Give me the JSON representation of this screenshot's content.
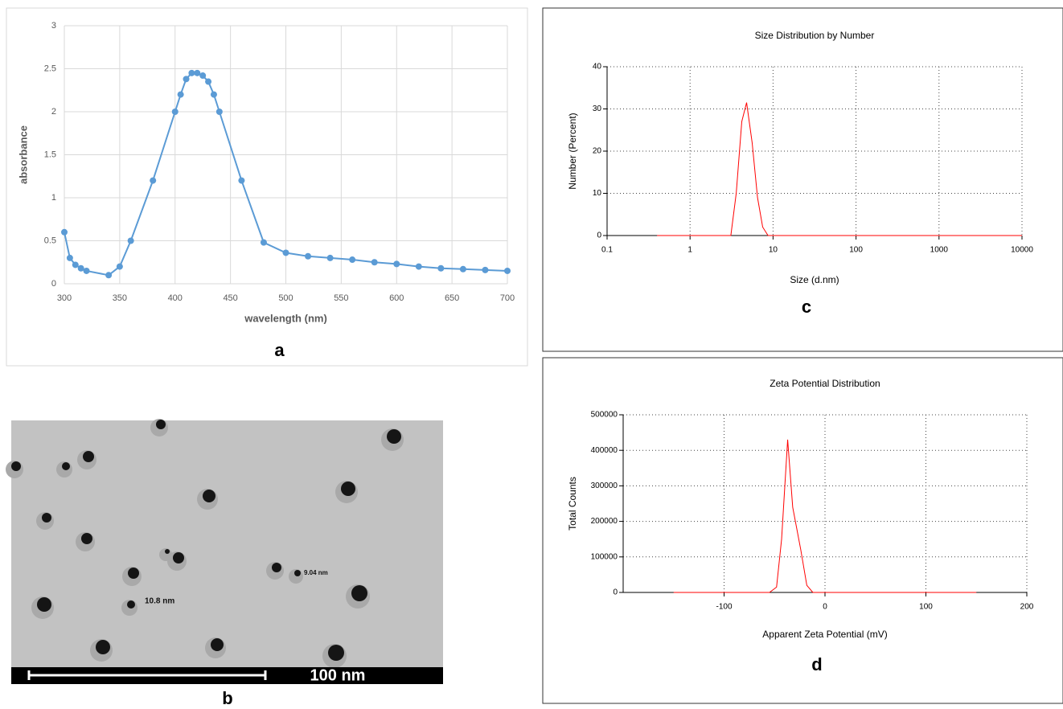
{
  "chart_data": [
    {
      "type": "line",
      "panel_label": "a",
      "x_label": "wavelength (nm)",
      "y_label": "absorbance",
      "x": [
        300,
        305,
        310,
        315,
        320,
        340,
        350,
        360,
        380,
        400,
        405,
        410,
        415,
        420,
        425,
        430,
        435,
        440,
        460,
        480,
        500,
        520,
        540,
        560,
        580,
        600,
        620,
        640,
        660,
        680,
        700
      ],
      "series": [
        {
          "color": "#5b9bd5",
          "values": [
            0.6,
            0.3,
            0.22,
            0.18,
            0.15,
            0.1,
            0.2,
            0.5,
            1.2,
            2.0,
            2.2,
            2.38,
            2.45,
            2.45,
            2.42,
            2.35,
            2.2,
            2.0,
            1.2,
            0.48,
            0.36,
            0.32,
            0.3,
            0.28,
            0.25,
            0.23,
            0.2,
            0.18,
            0.17,
            0.16,
            0.15
          ]
        }
      ],
      "markers": true,
      "grid": "solid",
      "xlim": [
        300,
        700
      ],
      "xticks": [
        300,
        350,
        400,
        450,
        500,
        550,
        600,
        650,
        700
      ],
      "ylim": [
        0,
        3
      ],
      "yticks": [
        0,
        0.5,
        1,
        1.5,
        2,
        2.5,
        3
      ]
    },
    {
      "type": "line",
      "title": "Size Distribution by Number",
      "panel_label": "c",
      "x_label": "Size (d.nm)",
      "y_label": "Number (Percent)",
      "x": [
        0.4,
        3.1,
        3.6,
        4.2,
        4.8,
        5.6,
        6.5,
        7.5,
        8.7,
        10000
      ],
      "series": [
        {
          "color": "#ff0000",
          "values": [
            0,
            0,
            10,
            27,
            31.5,
            22,
            9,
            2,
            0,
            0
          ]
        }
      ],
      "markers": false,
      "grid": "dotted",
      "xscale": "log",
      "xlim": [
        0.1,
        10000
      ],
      "xticks": [
        0.1,
        1,
        10,
        100,
        1000,
        10000
      ],
      "ylim": [
        0,
        40
      ],
      "yticks": [
        0,
        10,
        20,
        30,
        40
      ]
    },
    {
      "type": "line",
      "title": "Zeta Potential Distribution",
      "panel_label": "d",
      "x_label": "Apparent Zeta Potential (mV)",
      "y_label": "Total Counts",
      "x": [
        -150,
        -55,
        -48,
        -43,
        -37,
        -32,
        -24,
        -18,
        -12,
        150
      ],
      "series": [
        {
          "color": "#ff0000",
          "values": [
            0,
            0,
            15000,
            150000,
            430000,
            240000,
            120000,
            20000,
            0,
            0
          ]
        }
      ],
      "markers": false,
      "grid": "dotted",
      "xlim": [
        -200,
        200
      ],
      "xticks": [
        -100,
        0,
        100,
        200
      ],
      "ylim": [
        0,
        500000
      ],
      "yticks": [
        0,
        100000,
        200000,
        300000,
        400000,
        500000
      ]
    }
  ],
  "micrograph": {
    "panel_label": "b",
    "scale_bar": "100 nm",
    "annotations": [
      "10.8 nm",
      "9.04 nm"
    ]
  }
}
